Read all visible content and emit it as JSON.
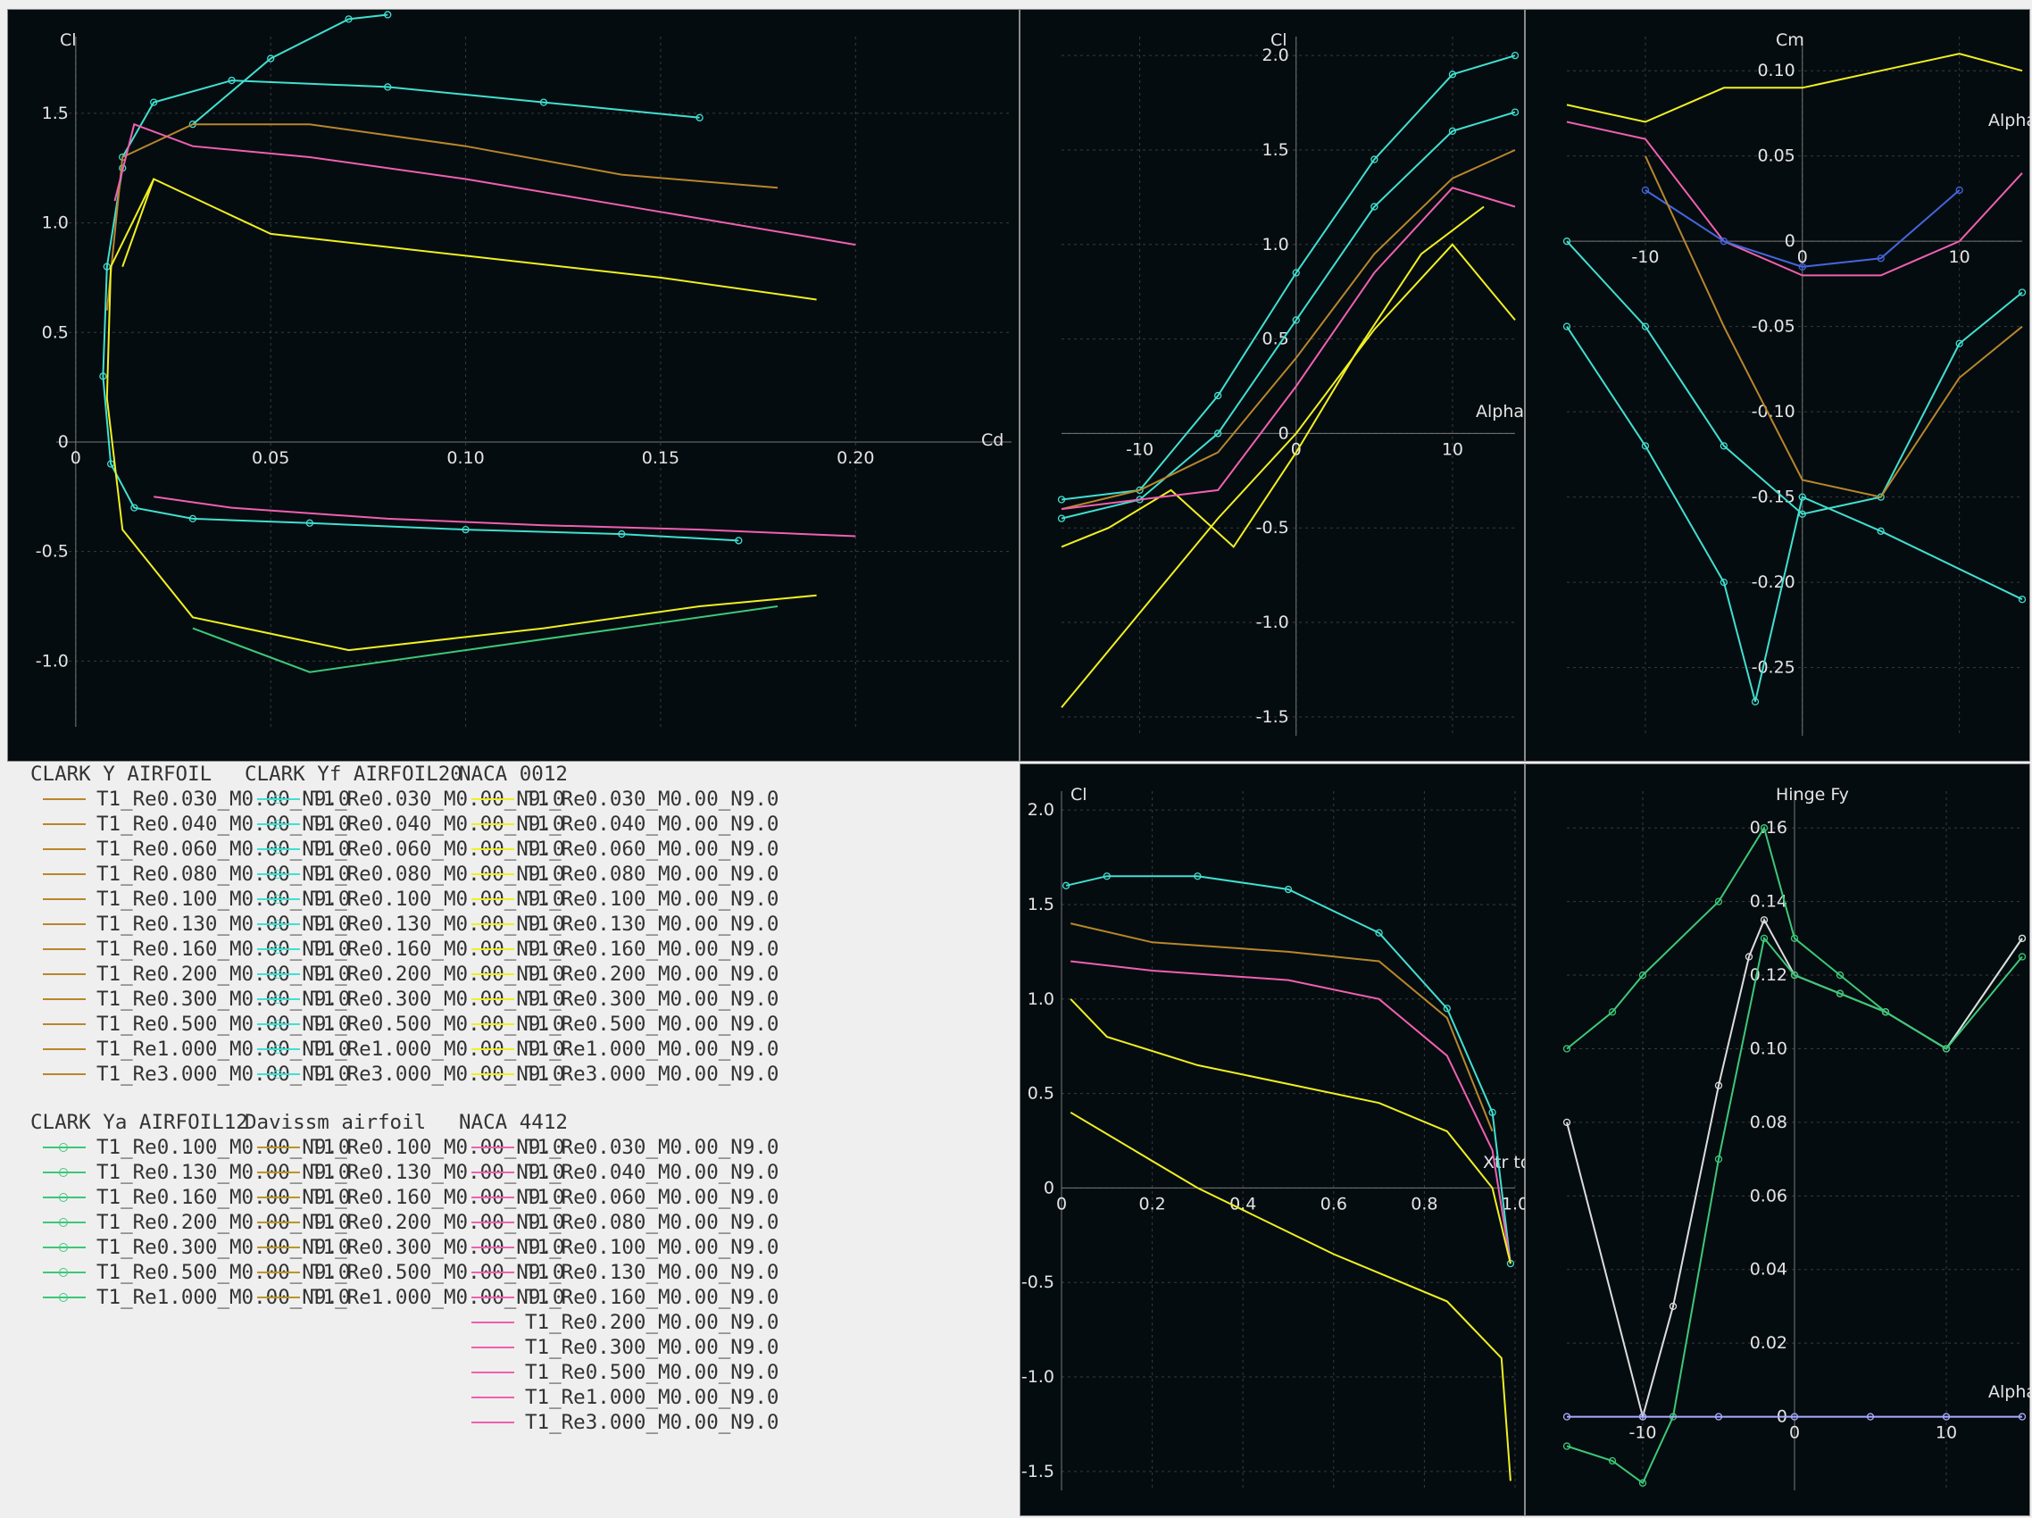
{
  "colors": {
    "panel_bg": "#050c10",
    "grid": "#3a3a3a",
    "axis_text": "#e4e4e4",
    "clark_y": "#b8862b",
    "clark_yf": "#40e0d0",
    "naca_0012": "#f0f020",
    "clark_ya": "#3cc878",
    "davissm": "#b8962b",
    "naca_4412": "#f060b0",
    "highlight": "#4466dd",
    "white": "#dddddd"
  },
  "legend": {
    "groups": [
      {
        "title": "CLARK Y AIRFOIL",
        "color": "#b8862b",
        "markers": false,
        "items": [
          "T1_Re0.030_M0.00_N9.0",
          "T1_Re0.040_M0.00_N9.0",
          "T1_Re0.060_M0.00_N9.0",
          "T1_Re0.080_M0.00_N9.0",
          "T1_Re0.100_M0.00_N9.0",
          "T1_Re0.130_M0.00_N9.0",
          "T1_Re0.160_M0.00_N9.0",
          "T1_Re0.200_M0.00_N9.0",
          "T1_Re0.300_M0.00_N9.0",
          "T1_Re0.500_M0.00_N9.0",
          "T1_Re1.000_M0.00_N9.0",
          "T1_Re3.000_M0.00_N9.0"
        ]
      },
      {
        "title": "CLARK Yf AIRFOIL20",
        "color": "#40e0d0",
        "markers": true,
        "items": [
          "T1_Re0.030_M0.00_N9.0",
          "T1_Re0.040_M0.00_N9.0",
          "T1_Re0.060_M0.00_N9.0",
          "T1_Re0.080_M0.00_N9.0",
          "T1_Re0.100_M0.00_N9.0",
          "T1_Re0.130_M0.00_N9.0",
          "T1_Re0.160_M0.00_N9.0",
          "T1_Re0.200_M0.00_N9.0",
          "T1_Re0.300_M0.00_N9.0",
          "T1_Re0.500_M0.00_N9.0",
          "T1_Re1.000_M0.00_N9.0",
          "T1_Re3.000_M0.00_N9.0"
        ]
      },
      {
        "title": "NACA 0012",
        "color": "#f0f020",
        "markers": false,
        "items": [
          "T1_Re0.030_M0.00_N9.0",
          "T1_Re0.040_M0.00_N9.0",
          "T1_Re0.060_M0.00_N9.0",
          "T1_Re0.080_M0.00_N9.0",
          "T1_Re0.100_M0.00_N9.0",
          "T1_Re0.130_M0.00_N9.0",
          "T1_Re0.160_M0.00_N9.0",
          "T1_Re0.200_M0.00_N9.0",
          "T1_Re0.300_M0.00_N9.0",
          "T1_Re0.500_M0.00_N9.0",
          "T1_Re1.000_M0.00_N9.0",
          "T1_Re3.000_M0.00_N9.0"
        ]
      },
      {
        "title": "CLARK Ya AIRFOIL12",
        "color": "#3cc878",
        "markers": true,
        "items": [
          "T1_Re0.100_M0.00_N9.0",
          "T1_Re0.130_M0.00_N9.0",
          "T1_Re0.160_M0.00_N9.0",
          "T1_Re0.200_M0.00_N9.0",
          "T1_Re0.300_M0.00_N9.0",
          "T1_Re0.500_M0.00_N9.0",
          "T1_Re1.000_M0.00_N9.0"
        ]
      },
      {
        "title": "Davissm airfoil",
        "color": "#b8962b",
        "markers": false,
        "items": [
          "T1_Re0.100_M0.00_N9.0",
          "T1_Re0.130_M0.00_N9.0",
          "T1_Re0.160_M0.00_N9.0",
          "T1_Re0.200_M0.00_N9.0",
          "T1_Re0.300_M0.00_N9.0",
          "T1_Re0.500_M0.00_N9.0",
          "T1_Re1.000_M0.00_N9.0"
        ]
      },
      {
        "title": "NACA 4412",
        "color": "#f060b0",
        "markers": false,
        "items": [
          "T1_Re0.030_M0.00_N9.0",
          "T1_Re0.040_M0.00_N9.0",
          "T1_Re0.060_M0.00_N9.0",
          "T1_Re0.080_M0.00_N9.0",
          "T1_Re0.100_M0.00_N9.0",
          "T1_Re0.130_M0.00_N9.0",
          "T1_Re0.160_M0.00_N9.0",
          "T1_Re0.200_M0.00_N9.0",
          "T1_Re0.300_M0.00_N9.0",
          "T1_Re0.500_M0.00_N9.0",
          "T1_Re1.000_M0.00_N9.0",
          "T1_Re3.000_M0.00_N9.0"
        ]
      }
    ]
  },
  "chart_data": [
    {
      "id": "polar",
      "type": "line",
      "xlabel": "Cd",
      "ylabel": "Cl",
      "xlim": [
        -0.005,
        0.24
      ],
      "ylim": [
        -1.3,
        1.85
      ],
      "xticks": [
        0,
        0.05,
        0.1,
        0.15,
        0.2
      ],
      "xtick_labels": [
        "0",
        "0.05",
        "0.10",
        "0.15",
        "0.20"
      ],
      "yticks": [
        -1.0,
        -0.5,
        0,
        0.5,
        1.0,
        1.5
      ],
      "ytick_labels": [
        "-1.0",
        "-0.5",
        "0",
        "0.5",
        "1.0",
        "1.5"
      ],
      "series": [
        {
          "color": "#40e0d0",
          "markers": true,
          "x": [
            0.012,
            0.008,
            0.007,
            0.009,
            0.015,
            0.03,
            0.06,
            0.1,
            0.14,
            0.17
          ],
          "y": [
            1.25,
            0.8,
            0.3,
            -0.1,
            -0.3,
            -0.35,
            -0.37,
            -0.4,
            -0.42,
            -0.45
          ]
        },
        {
          "color": "#40e0d0",
          "markers": true,
          "x": [
            0.012,
            0.02,
            0.04,
            0.08,
            0.12,
            0.16
          ],
          "y": [
            1.3,
            1.55,
            1.65,
            1.62,
            1.55,
            1.48
          ]
        },
        {
          "color": "#40e0d0",
          "markers": true,
          "x": [
            0.03,
            0.05,
            0.07,
            0.08
          ],
          "y": [
            1.45,
            1.75,
            1.93,
            1.95
          ]
        },
        {
          "color": "#b8862b",
          "markers": false,
          "x": [
            0.008,
            0.012,
            0.03,
            0.06,
            0.1,
            0.14,
            0.18
          ],
          "y": [
            0.6,
            1.3,
            1.45,
            1.45,
            1.35,
            1.22,
            1.16
          ]
        },
        {
          "color": "#f0f020",
          "markers": false,
          "x": [
            0.02,
            0.009,
            0.008,
            0.012,
            0.03,
            0.07,
            0.12,
            0.16,
            0.19
          ],
          "y": [
            1.2,
            0.8,
            0.2,
            -0.4,
            -0.8,
            -0.95,
            -0.85,
            -0.75,
            -0.7
          ]
        },
        {
          "color": "#f0f020",
          "markers": false,
          "x": [
            0.012,
            0.02,
            0.05,
            0.1,
            0.15,
            0.19
          ],
          "y": [
            0.8,
            1.2,
            0.95,
            0.85,
            0.75,
            0.65
          ]
        },
        {
          "color": "#f060b0",
          "markers": false,
          "x": [
            0.01,
            0.015,
            0.03,
            0.06,
            0.1,
            0.15,
            0.2
          ],
          "y": [
            1.1,
            1.45,
            1.35,
            1.3,
            1.2,
            1.05,
            0.9
          ]
        },
        {
          "color": "#f060b0",
          "markers": false,
          "x": [
            0.02,
            0.04,
            0.08,
            0.12,
            0.16,
            0.2
          ],
          "y": [
            -0.25,
            -0.3,
            -0.35,
            -0.38,
            -0.4,
            -0.43
          ]
        },
        {
          "color": "#3cc878",
          "markers": false,
          "x": [
            0.03,
            0.06,
            0.1,
            0.14,
            0.18
          ],
          "y": [
            -0.85,
            -1.05,
            -0.95,
            -0.85,
            -0.75
          ]
        }
      ]
    },
    {
      "id": "cl_alpha",
      "type": "line",
      "xlabel": "Alpha",
      "ylabel": "Cl",
      "xlim": [
        -15,
        14
      ],
      "ylim": [
        -1.6,
        2.1
      ],
      "xticks": [
        -10,
        0,
        10
      ],
      "xtick_labels": [
        "-10",
        "0",
        "10"
      ],
      "yticks": [
        -1.5,
        -1.0,
        -0.5,
        0,
        0.5,
        1.0,
        1.5,
        2.0
      ],
      "ytick_labels": [
        "-1.5",
        "-1.0",
        "-0.5",
        "0",
        "0.5",
        "1.0",
        "1.5",
        "2.0"
      ],
      "series": [
        {
          "color": "#40e0d0",
          "markers": true,
          "x": [
            -15,
            -10,
            -5,
            0,
            5,
            10,
            14
          ],
          "y": [
            -0.35,
            -0.3,
            0.2,
            0.85,
            1.45,
            1.9,
            2.0
          ]
        },
        {
          "color": "#40e0d0",
          "markers": true,
          "x": [
            -15,
            -10,
            -5,
            0,
            5,
            10,
            14
          ],
          "y": [
            -0.45,
            -0.35,
            0.0,
            0.6,
            1.2,
            1.6,
            1.7
          ]
        },
        {
          "color": "#b8862b",
          "markers": false,
          "x": [
            -15,
            -10,
            -5,
            0,
            5,
            10,
            14
          ],
          "y": [
            -0.4,
            -0.3,
            -0.1,
            0.4,
            0.95,
            1.35,
            1.5
          ]
        },
        {
          "color": "#f0f020",
          "markers": false,
          "x": [
            -15,
            -10,
            -5,
            0,
            5,
            10,
            14
          ],
          "y": [
            -1.45,
            -0.95,
            -0.45,
            0.0,
            0.55,
            1.0,
            0.6
          ]
        },
        {
          "color": "#f0f020",
          "markers": false,
          "x": [
            -15,
            -12,
            -8,
            -4,
            0,
            4,
            8,
            12
          ],
          "y": [
            -0.6,
            -0.5,
            -0.3,
            -0.6,
            -0.1,
            0.45,
            0.95,
            1.2
          ]
        },
        {
          "color": "#f060b0",
          "markers": false,
          "x": [
            -15,
            -10,
            -5,
            0,
            5,
            10,
            14
          ],
          "y": [
            -0.4,
            -0.35,
            -0.3,
            0.25,
            0.85,
            1.3,
            1.2
          ]
        }
      ]
    },
    {
      "id": "cm_alpha",
      "type": "line",
      "xlabel": "Alpha",
      "ylabel": "Cm",
      "xlim": [
        -15,
        14
      ],
      "ylim": [
        -0.29,
        0.12
      ],
      "xticks": [
        -10,
        0,
        10
      ],
      "xtick_labels": [
        "-10",
        "0",
        "10"
      ],
      "yticks": [
        -0.25,
        -0.2,
        -0.15,
        -0.1,
        -0.05,
        0,
        0.05,
        0.1
      ],
      "ytick_labels": [
        "-0.25",
        "-0.20",
        "-0.15",
        "-0.10",
        "-0.05",
        "0",
        "0.05",
        "0.10"
      ],
      "series": [
        {
          "color": "#f0f020",
          "markers": false,
          "x": [
            -15,
            -10,
            -5,
            0,
            5,
            10,
            14
          ],
          "y": [
            0.08,
            0.07,
            0.09,
            0.09,
            0.1,
            0.11,
            0.1
          ]
        },
        {
          "color": "#f060b0",
          "markers": false,
          "x": [
            -15,
            -10,
            -5,
            0,
            5,
            10,
            14
          ],
          "y": [
            0.07,
            0.06,
            0.0,
            -0.02,
            -0.02,
            0.0,
            0.04
          ]
        },
        {
          "color": "#4466dd",
          "markers": true,
          "x": [
            -10,
            -5,
            0,
            5,
            10
          ],
          "y": [
            0.03,
            0.0,
            -0.015,
            -0.01,
            0.03
          ]
        },
        {
          "color": "#40e0d0",
          "markers": true,
          "x": [
            -15,
            -10,
            -5,
            0,
            5,
            10,
            14
          ],
          "y": [
            0.0,
            -0.05,
            -0.12,
            -0.16,
            -0.15,
            -0.06,
            -0.03
          ]
        },
        {
          "color": "#b8862b",
          "markers": false,
          "x": [
            -10,
            -5,
            0,
            5,
            10,
            14
          ],
          "y": [
            0.05,
            -0.05,
            -0.14,
            -0.15,
            -0.08,
            -0.05
          ]
        },
        {
          "color": "#40e0d0",
          "markers": true,
          "x": [
            -15,
            -10,
            -5,
            -3,
            0,
            5,
            14
          ],
          "y": [
            -0.05,
            -0.12,
            -0.2,
            -0.27,
            -0.15,
            -0.17,
            -0.21
          ]
        }
      ]
    },
    {
      "id": "cl_xtr",
      "type": "line",
      "xlabel": "Xtr top",
      "ylabel": "Cl",
      "xlim": [
        0,
        1.0
      ],
      "ylim": [
        -1.6,
        2.1
      ],
      "xticks": [
        0,
        0.2,
        0.4,
        0.6,
        0.8,
        1.0
      ],
      "xtick_labels": [
        "0",
        "0.2",
        "0.4",
        "0.6",
        "0.8",
        "1.0"
      ],
      "yticks": [
        -1.5,
        -1.0,
        -0.5,
        0,
        0.5,
        1.0,
        1.5,
        2.0
      ],
      "ytick_labels": [
        "-1.5",
        "-1.0",
        "-0.5",
        "0",
        "0.5",
        "1.0",
        "1.5",
        "2.0"
      ],
      "series": [
        {
          "color": "#40e0d0",
          "markers": true,
          "x": [
            0.01,
            0.1,
            0.3,
            0.5,
            0.7,
            0.85,
            0.95,
            0.99
          ],
          "y": [
            1.6,
            1.65,
            1.65,
            1.58,
            1.35,
            0.95,
            0.4,
            -0.4
          ]
        },
        {
          "color": "#b8862b",
          "markers": false,
          "x": [
            0.02,
            0.2,
            0.5,
            0.7,
            0.85,
            0.95
          ],
          "y": [
            1.4,
            1.3,
            1.25,
            1.2,
            0.9,
            0.3
          ]
        },
        {
          "color": "#f060b0",
          "markers": false,
          "x": [
            0.02,
            0.2,
            0.5,
            0.7,
            0.85,
            0.95,
            0.99
          ],
          "y": [
            1.2,
            1.15,
            1.1,
            1.0,
            0.7,
            0.2,
            -0.4
          ]
        },
        {
          "color": "#f0f020",
          "markers": false,
          "x": [
            0.02,
            0.1,
            0.3,
            0.5,
            0.7,
            0.85,
            0.95,
            0.99
          ],
          "y": [
            1.0,
            0.8,
            0.65,
            0.55,
            0.45,
            0.3,
            0.0,
            -0.4
          ]
        },
        {
          "color": "#f0f020",
          "markers": false,
          "x": [
            0.02,
            0.3,
            0.6,
            0.85,
            0.97,
            0.99
          ],
          "y": [
            0.4,
            0.0,
            -0.35,
            -0.6,
            -0.9,
            -1.55
          ]
        }
      ]
    },
    {
      "id": "hinge",
      "type": "line",
      "xlabel": "Alpha",
      "ylabel": "Hinge Fy",
      "xlim": [
        -15,
        15
      ],
      "ylim": [
        -0.02,
        0.17
      ],
      "xticks": [
        -10,
        0,
        10
      ],
      "xtick_labels": [
        "-10",
        "0",
        "10"
      ],
      "yticks": [
        0,
        0.02,
        0.04,
        0.06,
        0.08,
        0.1,
        0.12,
        0.14,
        0.16
      ],
      "ytick_labels": [
        "0",
        "0.02",
        "0.04",
        "0.06",
        "0.08",
        "0.10",
        "0.12",
        "0.14",
        "0.16"
      ],
      "series": [
        {
          "color": "#3cc878",
          "markers": true,
          "x": [
            -15,
            -12,
            -10,
            -5,
            -2,
            0,
            3,
            6,
            10,
            15
          ],
          "y": [
            0.1,
            0.11,
            0.12,
            0.14,
            0.16,
            0.13,
            0.12,
            0.11,
            0.1,
            0.13
          ]
        },
        {
          "color": "#dddddd",
          "markers": true,
          "x": [
            -15,
            -10,
            -8,
            -5,
            -3,
            -2,
            0,
            3,
            6,
            10,
            15
          ],
          "y": [
            0.08,
            0.0,
            0.03,
            0.09,
            0.125,
            0.135,
            0.12,
            0.115,
            0.11,
            0.1,
            0.13
          ]
        },
        {
          "color": "#3cc878",
          "markers": true,
          "x": [
            -15,
            -12,
            -10,
            -8,
            -5,
            -2,
            0,
            3,
            6,
            10,
            15
          ],
          "y": [
            -0.008,
            -0.012,
            -0.018,
            0.0,
            0.07,
            0.13,
            0.12,
            0.115,
            0.11,
            0.1,
            0.125
          ]
        },
        {
          "color": "#aaaaff",
          "markers": true,
          "x": [
            -15,
            -10,
            -5,
            0,
            5,
            10,
            15
          ],
          "y": [
            0,
            0,
            0,
            0,
            0,
            0,
            0
          ]
        }
      ]
    }
  ]
}
